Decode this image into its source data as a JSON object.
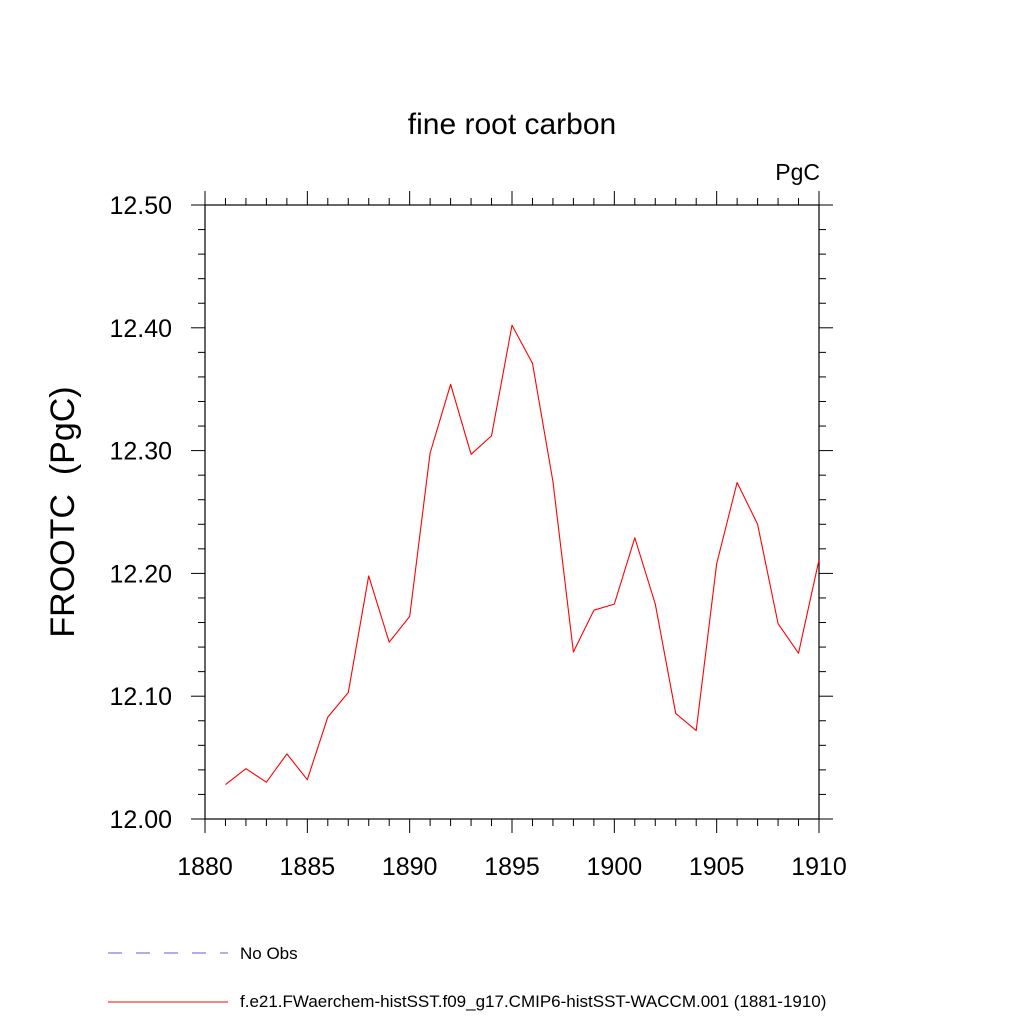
{
  "chart_data": {
    "type": "line",
    "title": "fine root carbon",
    "units": "PgC",
    "xlabel": "",
    "ylabel": "FROOTC  (PgC)",
    "xlim": [
      1880,
      1910
    ],
    "ylim": [
      12.0,
      12.5
    ],
    "x_ticks": [
      1880,
      1885,
      1890,
      1895,
      1900,
      1905,
      1910
    ],
    "y_ticks": [
      "12.00",
      "12.10",
      "12.20",
      "12.30",
      "12.40",
      "12.50"
    ],
    "grid": false,
    "legend_placement": "bottom-left",
    "series": [
      {
        "name": "f.e21.FWaerchem-histSST.f09_g17.CMIP6-histSST-WACCM.001 (1881-1910)",
        "color": "#ff0000",
        "style": "solid",
        "x": [
          1881,
          1882,
          1883,
          1884,
          1885,
          1886,
          1887,
          1888,
          1889,
          1890,
          1891,
          1892,
          1893,
          1894,
          1895,
          1896,
          1897,
          1898,
          1899,
          1900,
          1901,
          1902,
          1903,
          1904,
          1905,
          1906,
          1907,
          1908,
          1909,
          1910
        ],
        "values": [
          12.028,
          12.041,
          12.03,
          12.053,
          12.032,
          12.083,
          12.103,
          12.198,
          12.144,
          12.165,
          12.298,
          12.354,
          12.297,
          12.312,
          12.402,
          12.371,
          12.275,
          12.136,
          12.17,
          12.175,
          12.229,
          12.175,
          12.086,
          12.072,
          12.208,
          12.274,
          12.24,
          12.159,
          12.135,
          12.211
        ]
      },
      {
        "name": "No Obs",
        "color": "#6a5acd",
        "style": "dashed",
        "x": [],
        "values": []
      }
    ]
  }
}
